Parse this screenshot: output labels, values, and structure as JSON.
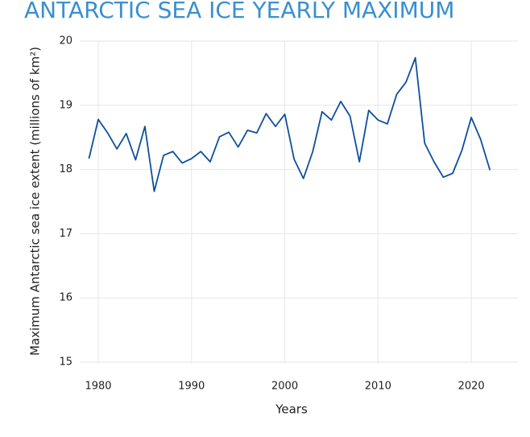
{
  "chart_data": {
    "type": "line",
    "title": "ANTARCTIC SEA ICE YEARLY MAXIMUM",
    "x_label": "Years",
    "y_label": "Maximum Antarctic sea ice extent (millions of km²)",
    "x": [
      1979,
      1980,
      1981,
      1982,
      1983,
      1984,
      1985,
      1986,
      1987,
      1988,
      1989,
      1990,
      1991,
      1992,
      1993,
      1994,
      1995,
      1996,
      1997,
      1998,
      1999,
      2000,
      2001,
      2002,
      2003,
      2004,
      2005,
      2006,
      2007,
      2008,
      2009,
      2010,
      2011,
      2012,
      2013,
      2014,
      2015,
      2016,
      2017,
      2018,
      2019,
      2020,
      2021,
      2022
    ],
    "values": [
      18.17,
      18.78,
      18.57,
      18.32,
      18.56,
      18.15,
      18.67,
      17.66,
      18.22,
      18.28,
      18.1,
      18.17,
      18.28,
      18.12,
      18.51,
      18.58,
      18.35,
      18.61,
      18.57,
      18.87,
      18.67,
      18.86,
      18.16,
      17.86,
      18.28,
      18.9,
      18.77,
      19.06,
      18.83,
      18.12,
      18.92,
      18.77,
      18.71,
      19.17,
      19.36,
      19.74,
      18.41,
      18.12,
      17.88,
      17.94,
      18.3,
      18.81,
      18.47,
      17.99
    ],
    "color": "#0d4f9e",
    "xlim": [
      1978,
      2025
    ],
    "xticks": [
      1980,
      1990,
      2000,
      2010,
      2020
    ],
    "ylim": [
      15,
      20
    ],
    "yticks": [
      15,
      16,
      17,
      18,
      19,
      20
    ],
    "grid": true
  }
}
